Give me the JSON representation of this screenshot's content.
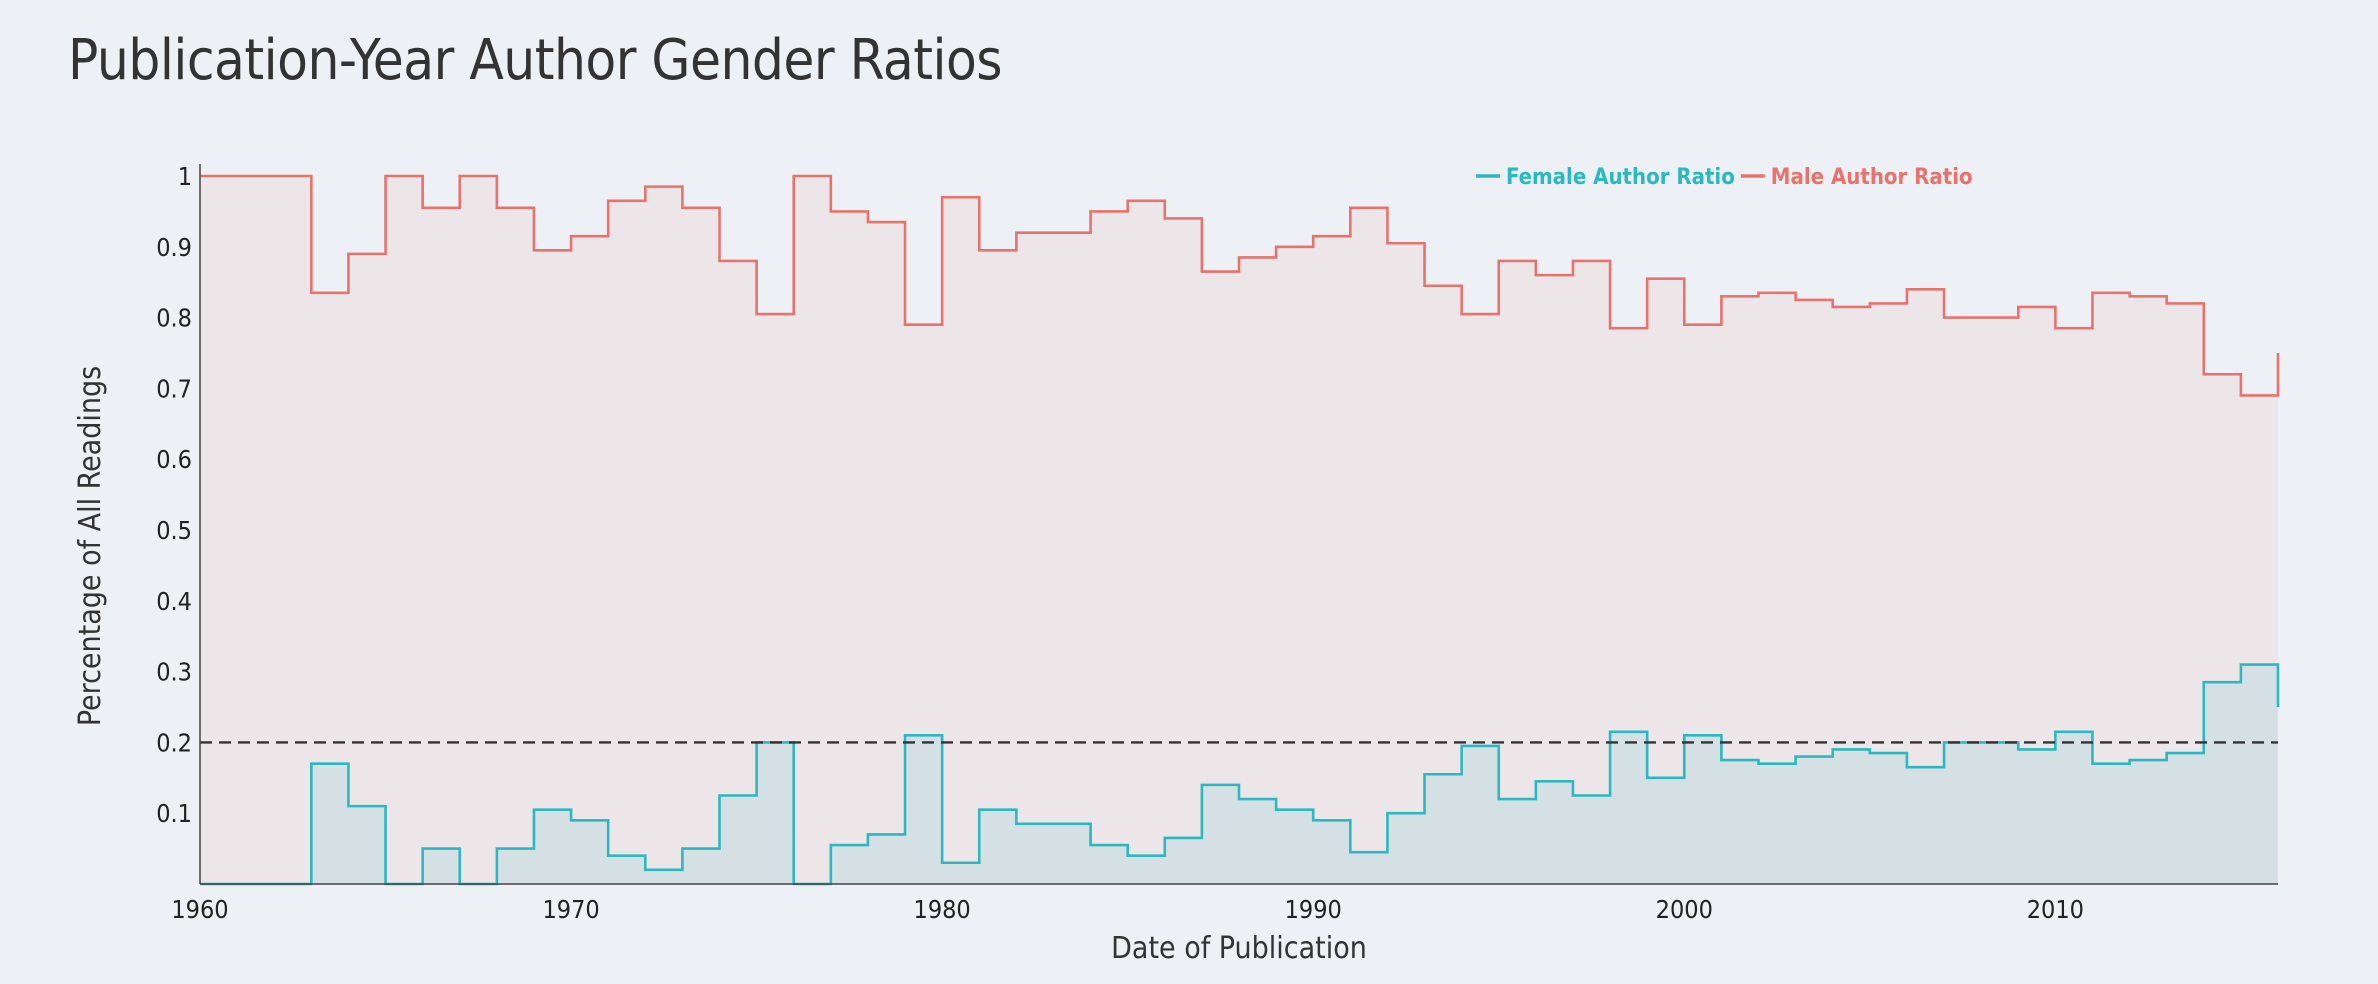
{
  "chart_data": {
    "type": "area",
    "step": "post",
    "title": "Publication-Year Author Gender Ratios",
    "xlabel": "Date of Publication",
    "ylabel": "Percentage of All Readings",
    "xlim": [
      1960,
      2016
    ],
    "ylim": [
      0,
      1
    ],
    "x_ticks": [
      1960,
      1970,
      1980,
      1990,
      2000,
      2010
    ],
    "y_ticks": [
      0.1,
      0.2,
      0.3,
      0.4,
      0.5,
      0.6,
      0.7,
      0.8,
      0.9,
      1
    ],
    "reference_line": {
      "y": 0.2,
      "style": "dashed",
      "color": "#333333"
    },
    "grid": false,
    "legend": {
      "placement": "top-center"
    },
    "x": [
      1960,
      1961,
      1962,
      1963,
      1964,
      1965,
      1966,
      1967,
      1968,
      1969,
      1970,
      1971,
      1972,
      1973,
      1974,
      1975,
      1976,
      1977,
      1978,
      1979,
      1980,
      1981,
      1982,
      1983,
      1984,
      1985,
      1986,
      1987,
      1988,
      1989,
      1990,
      1991,
      1992,
      1993,
      1994,
      1995,
      1996,
      1997,
      1998,
      1999,
      2000,
      2001,
      2002,
      2003,
      2004,
      2005,
      2006,
      2007,
      2008,
      2009,
      2010,
      2011,
      2012,
      2013,
      2014,
      2015
    ],
    "series": [
      {
        "name": "Female Author Ratio",
        "color": "#2cb8c0",
        "values": [
          0,
          0,
          0,
          0.17,
          0.11,
          0,
          0.05,
          0,
          0.05,
          0.105,
          0.09,
          0.04,
          0.02,
          0.05,
          0.125,
          0.2,
          0,
          0.055,
          0.07,
          0.21,
          0.03,
          0.105,
          0.085,
          0.085,
          0.055,
          0.04,
          0.065,
          0.14,
          0.12,
          0.105,
          0.09,
          0.045,
          0.1,
          0.155,
          0.195,
          0.12,
          0.145,
          0.125,
          0.215,
          0.15,
          0.21,
          0.175,
          0.17,
          0.18,
          0.19,
          0.185,
          0.165,
          0.2,
          0.2,
          0.19,
          0.215,
          0.17,
          0.175,
          0.185,
          0.285,
          0.31
        ],
        "end_value": 0.25
      },
      {
        "name": "Male Author Ratio",
        "color": "#e8736c",
        "values": [
          1,
          1,
          1,
          0.835,
          0.89,
          1,
          0.955,
          1,
          0.955,
          0.895,
          0.915,
          0.965,
          0.985,
          0.955,
          0.88,
          0.805,
          1,
          0.95,
          0.935,
          0.79,
          0.97,
          0.895,
          0.92,
          0.92,
          0.95,
          0.965,
          0.94,
          0.865,
          0.885,
          0.9,
          0.915,
          0.955,
          0.905,
          0.845,
          0.805,
          0.88,
          0.86,
          0.88,
          0.785,
          0.855,
          0.79,
          0.83,
          0.835,
          0.825,
          0.815,
          0.82,
          0.84,
          0.8,
          0.8,
          0.815,
          0.785,
          0.835,
          0.83,
          0.82,
          0.72,
          0.69
        ],
        "end_value": 0.75
      }
    ]
  }
}
